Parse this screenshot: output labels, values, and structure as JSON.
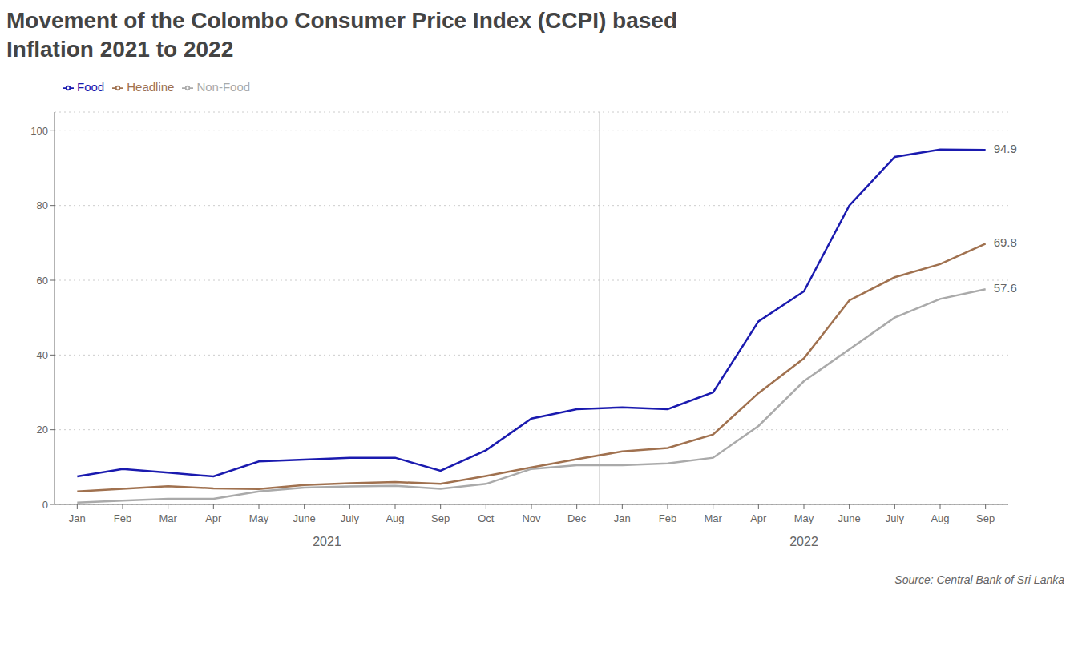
{
  "chart_data": {
    "type": "line",
    "title": "Movement of the Colombo Consumer Price Index (CCPI) based",
    "subtitle": "Inflation 2021 to 2022",
    "categories": [
      "Jan",
      "Feb",
      "Mar",
      "Apr",
      "May",
      "June",
      "July",
      "Aug",
      "Sep",
      "Oct",
      "Nov",
      "Dec",
      "Jan",
      "Feb",
      "Mar",
      "Apr",
      "May",
      "June",
      "July",
      "Aug",
      "Sep"
    ],
    "series": [
      {
        "name": "Headline",
        "color": "#A0714F",
        "values": [
          3.5,
          4.2,
          4.9,
          4.3,
          4.1,
          5.2,
          5.7,
          6.0,
          5.5,
          7.6,
          9.9,
          12.1,
          14.2,
          15.1,
          18.7,
          29.8,
          39.1,
          54.6,
          60.8,
          64.3,
          69.8
        ],
        "value_labels": [
          null,
          null,
          null,
          null,
          null,
          null,
          null,
          null,
          null,
          null,
          null,
          null,
          null,
          null,
          null,
          null,
          null,
          null,
          null,
          null,
          "69.8"
        ]
      },
      {
        "name": "Food",
        "color": "#1A1AAF",
        "values": [
          7.5,
          9.5,
          8.5,
          7.5,
          11.5,
          12.0,
          12.5,
          12.5,
          9.0,
          14.5,
          23.0,
          25.5,
          26.0,
          25.5,
          30.0,
          49.0,
          57.0,
          80.0,
          93.0,
          95.0,
          94.9
        ],
        "value_labels": [
          null,
          null,
          null,
          null,
          null,
          null,
          null,
          null,
          null,
          null,
          null,
          null,
          null,
          null,
          null,
          null,
          null,
          null,
          null,
          null,
          "94.9"
        ]
      },
      {
        "name": "Non-Food",
        "color": "#AAAAAA",
        "values": [
          0.5,
          1.0,
          1.5,
          1.5,
          3.5,
          4.5,
          4.8,
          5.0,
          4.2,
          5.5,
          9.5,
          10.5,
          10.5,
          11.0,
          12.5,
          21.0,
          33.0,
          41.5,
          50.0,
          55.0,
          57.6
        ],
        "value_labels": [
          null,
          null,
          null,
          null,
          null,
          null,
          null,
          null,
          null,
          null,
          null,
          null,
          null,
          null,
          null,
          null,
          null,
          null,
          null,
          null,
          "57.6"
        ]
      }
    ],
    "ylim": [
      0,
      105
    ],
    "yticks": [
      0,
      20,
      40,
      60,
      80,
      100
    ],
    "grid": true,
    "legend": "top",
    "annotations": [
      {
        "text": "2021",
        "x": [
          0,
          11
        ]
      },
      {
        "text": "2022",
        "x": [
          12,
          20
        ]
      },
      {
        "text": "Source: Central Bank of Sri Lanka"
      }
    ]
  }
}
